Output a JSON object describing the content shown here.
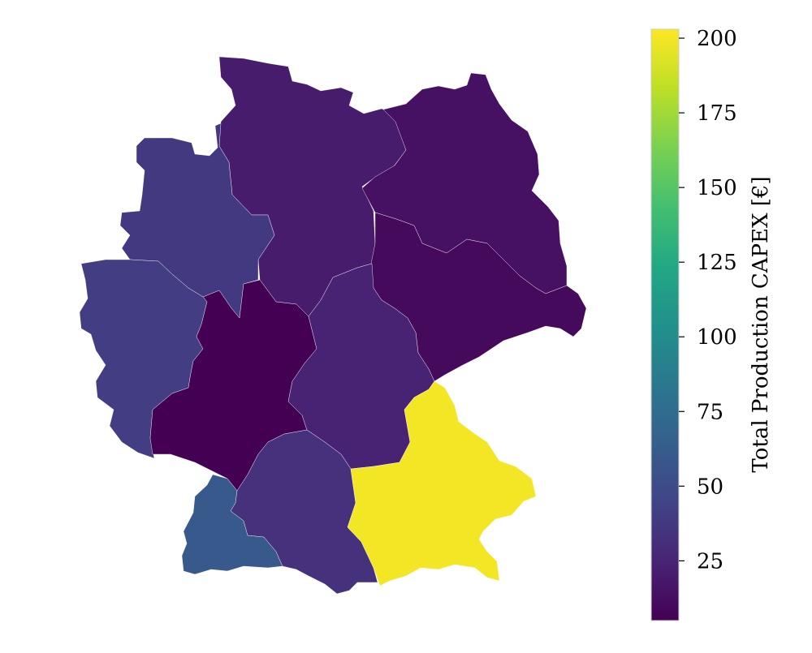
{
  "chart_data": {
    "type": "choropleth",
    "title": "",
    "colorbar": {
      "label": "Total Production CAPEX [€]",
      "colormap": "viridis",
      "range": [
        5,
        203
      ],
      "ticks": [
        25,
        50,
        75,
        100,
        125,
        150,
        175,
        200
      ]
    },
    "regions": [
      {
        "name": "north",
        "value": 20
      },
      {
        "name": "northeast",
        "value": 14
      },
      {
        "name": "northwest",
        "value": 38
      },
      {
        "name": "west",
        "value": 40
      },
      {
        "name": "east",
        "value": 10
      },
      {
        "name": "central-west",
        "value": 5
      },
      {
        "name": "central-east",
        "value": 24
      },
      {
        "name": "southwest",
        "value": 60
      },
      {
        "name": "south-central",
        "value": 33
      },
      {
        "name": "southeast",
        "value": 200
      }
    ]
  }
}
